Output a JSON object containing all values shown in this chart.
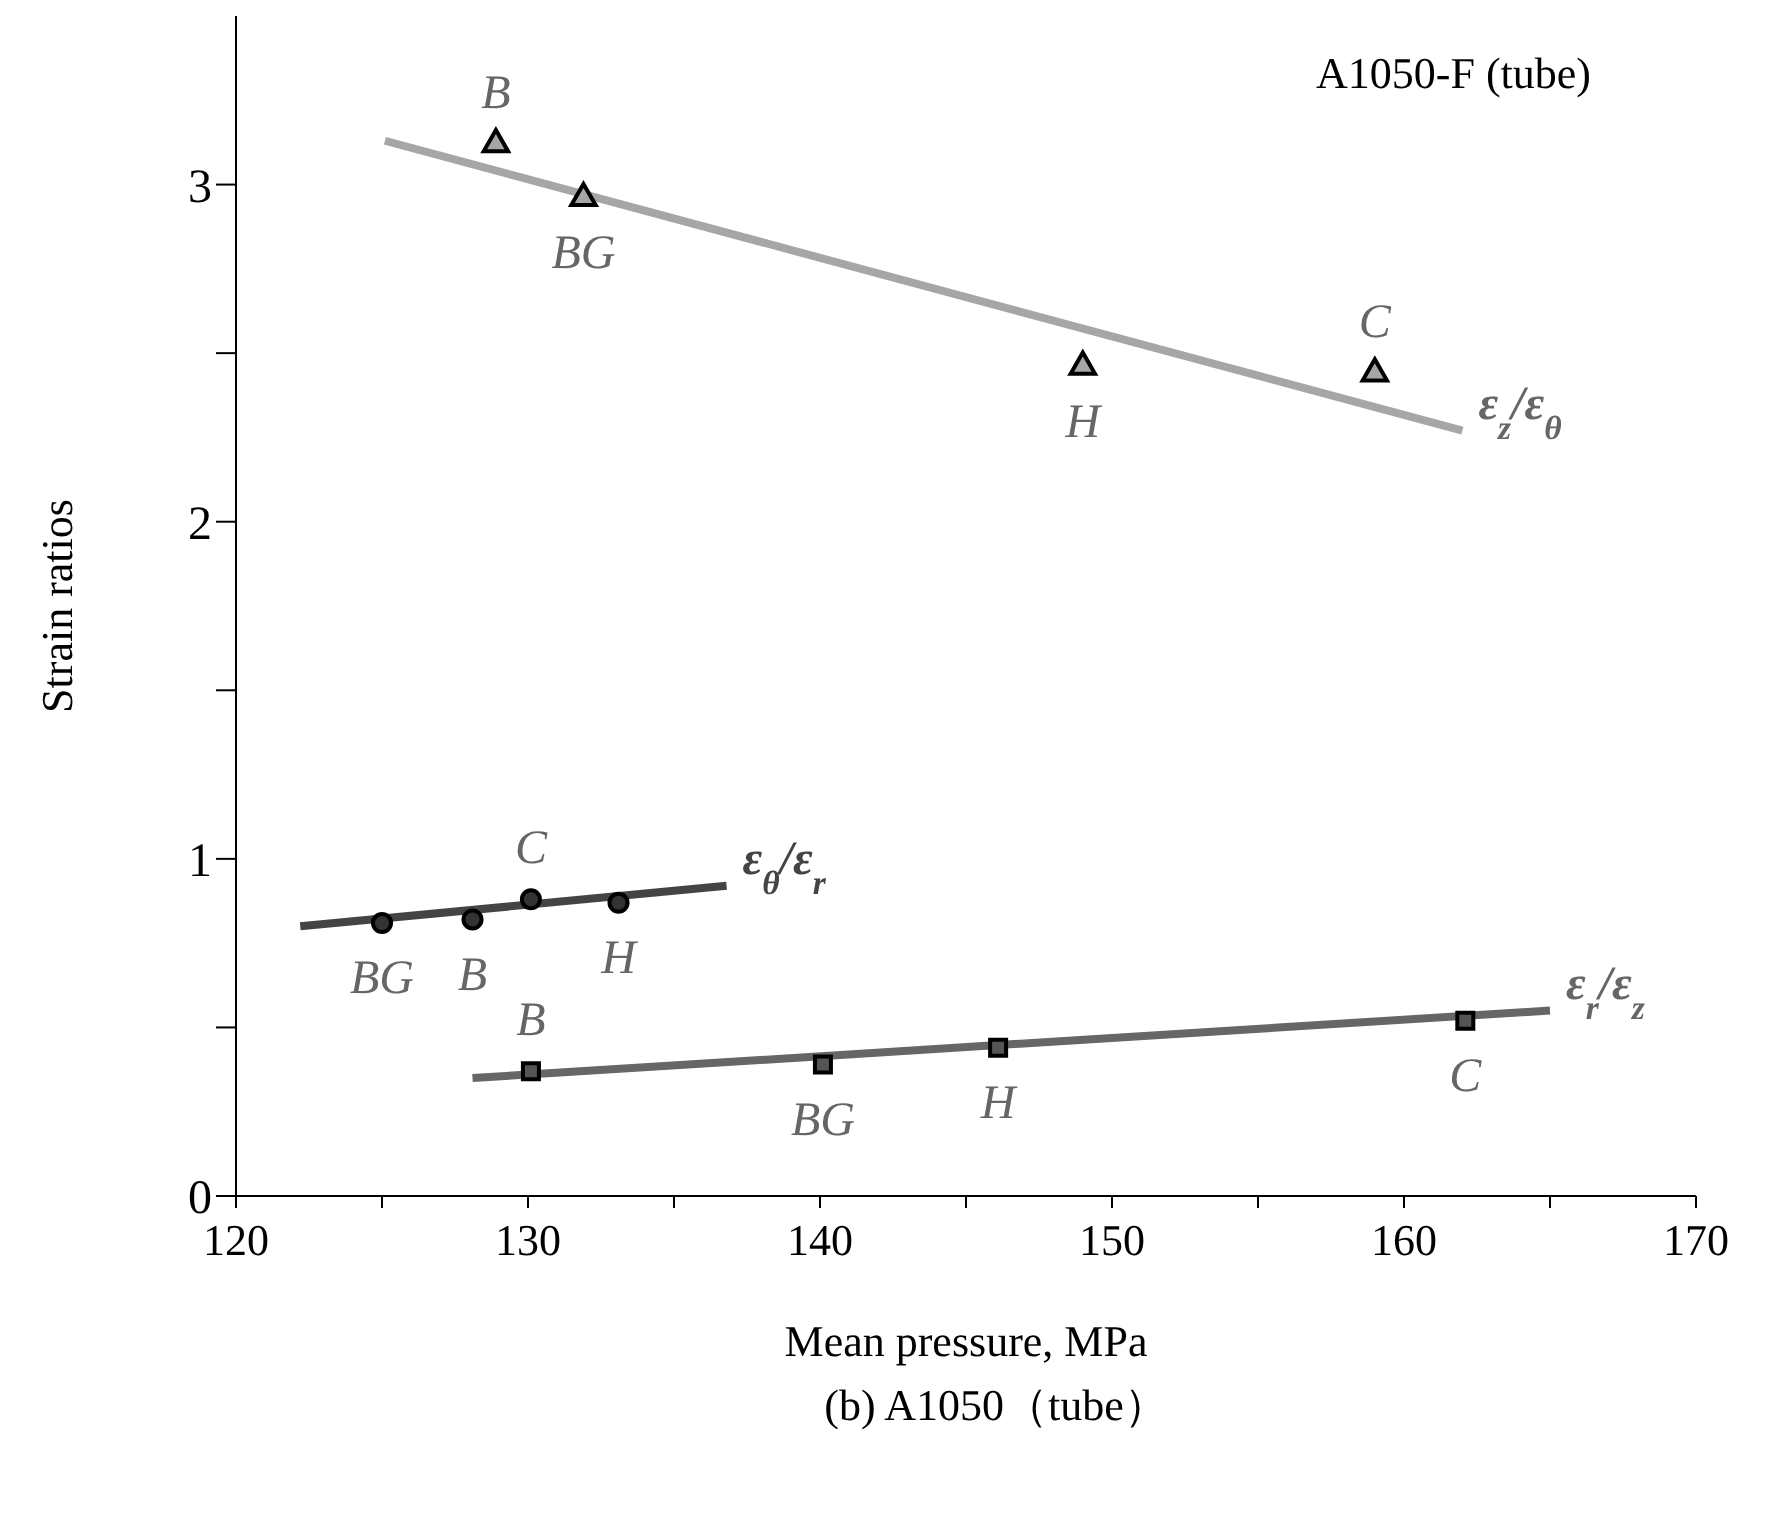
{
  "chart_data": {
    "type": "scatter",
    "xlabel": "Mean pressure, MPa",
    "ylabel": "Strain ratios",
    "xlim": [
      120,
      170
    ],
    "xticks": [
      120,
      {
        "value": 125,
        "label": null
      },
      130,
      {
        "value": 135,
        "label": null
      },
      140,
      {
        "value": 145,
        "label": null
      },
      150,
      {
        "value": 155,
        "label": null
      },
      160,
      {
        "value": 165,
        "label": null
      },
      170
    ],
    "ylim": [
      0,
      3.5
    ],
    "yticks": [
      0,
      {
        "value": 0.5,
        "label": null
      },
      1,
      {
        "value": 1.5,
        "label": null
      },
      2,
      {
        "value": 2.5,
        "label": null
      },
      3
    ],
    "grid": false,
    "series": [
      {
        "marker": "triangle",
        "color": "#a6a6a6",
        "x": [
          128.9,
          131.9,
          149.0,
          159.0
        ],
        "values": [
          3.12,
          2.96,
          2.46,
          2.44
        ]
      },
      {
        "type": "line",
        "name": "ε$_{z}$/ε$_{θ}$",
        "marker": "none",
        "color": "#a6a6a6",
        "x": [
          125.1,
          162.0
        ],
        "values": [
          3.13,
          2.27
        ]
      },
      {
        "marker": "circle",
        "color": "#333333",
        "x": [
          125.0,
          128.1,
          130.1,
          133.1
        ],
        "values": [
          0.81,
          0.82,
          0.88,
          0.87
        ]
      },
      {
        "type": "line",
        "name": "ε$_{θ}$/ε$_{r}$",
        "marker": "none",
        "color": "#444444",
        "x": [
          122.2,
          136.8
        ],
        "values": [
          0.8,
          0.92
        ]
      },
      {
        "marker": "square",
        "color": "#555555",
        "x": [
          130.1,
          140.1,
          146.1,
          162.1
        ],
        "values": [
          0.37,
          0.39,
          0.44,
          0.52
        ]
      },
      {
        "type": "line",
        "name": "ε$_{r}$/ε$_{z}$",
        "marker": "none",
        "color": "#666666",
        "x": [
          128.1,
          165.0
        ],
        "values": [
          0.35,
          0.55
        ]
      }
    ],
    "annotations": [
      "A1050-F (tube)",
      "(b) A1050（tube）",
      {
        "text": "B",
        "x": 128.9,
        "y": 3.12
      },
      {
        "text": "BG",
        "x": 131.9,
        "y": 2.96
      },
      {
        "text": "H",
        "x": 149.0,
        "y": 2.46
      },
      {
        "text": "C",
        "x": 159.0,
        "y": 2.44
      },
      {
        "text": "BG",
        "x": 125.0,
        "y": 0.81
      },
      {
        "text": "B",
        "x": 128.1,
        "y": 0.82
      },
      {
        "text": "C",
        "x": 130.1,
        "y": 0.88
      },
      {
        "text": "H",
        "x": 133.1,
        "y": 0.87
      },
      {
        "text": "B",
        "x": 130.1,
        "y": 0.37
      },
      {
        "text": "BG",
        "x": 140.1,
        "y": 0.39
      },
      {
        "text": "H",
        "x": 146.1,
        "y": 0.44
      },
      {
        "text": "C",
        "x": 162.1,
        "y": 0.52
      }
    ]
  }
}
